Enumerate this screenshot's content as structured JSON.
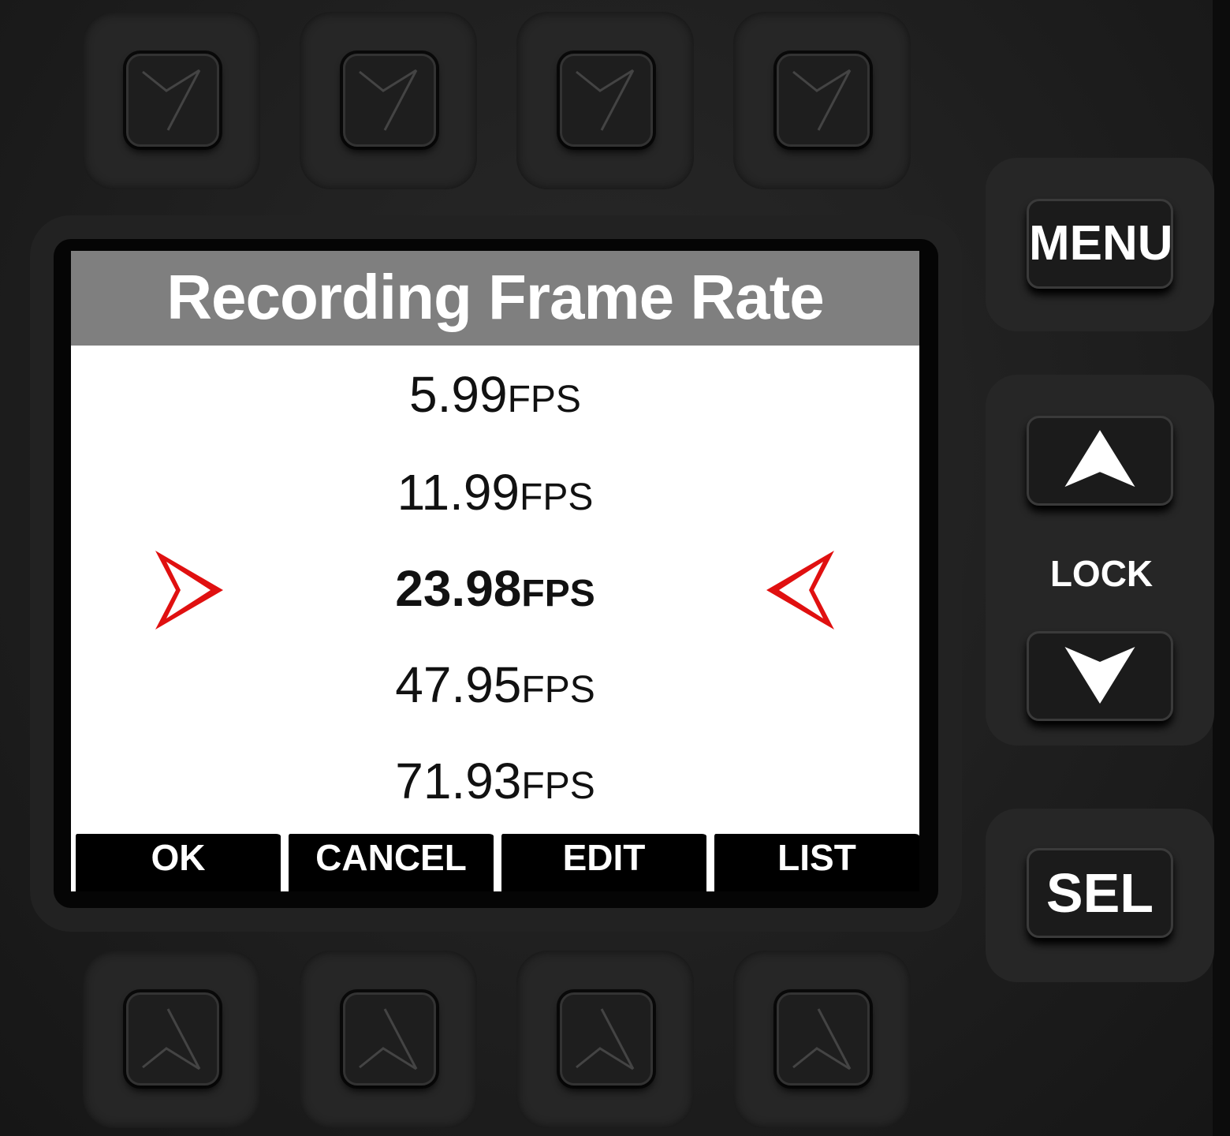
{
  "screen": {
    "title": "Recording Frame Rate",
    "items": [
      {
        "value": "5.99",
        "unit": "FPS",
        "selected": false
      },
      {
        "value": "11.99",
        "unit": "FPS",
        "selected": false
      },
      {
        "value": "23.98",
        "unit": "FPS",
        "selected": true
      },
      {
        "value": "47.95",
        "unit": "FPS",
        "selected": false
      },
      {
        "value": "71.93",
        "unit": "FPS",
        "selected": false
      }
    ],
    "softkeys": [
      "OK",
      "CANCEL",
      "EDIT",
      "LIST"
    ],
    "header_color": "#7f7f7f",
    "selection_arrow_color": "#e01010"
  },
  "side_buttons": {
    "menu": "MENU",
    "up_icon": "triangle-up-icon",
    "lock": "LOCK",
    "down_icon": "triangle-down-icon",
    "sel": "SEL"
  }
}
